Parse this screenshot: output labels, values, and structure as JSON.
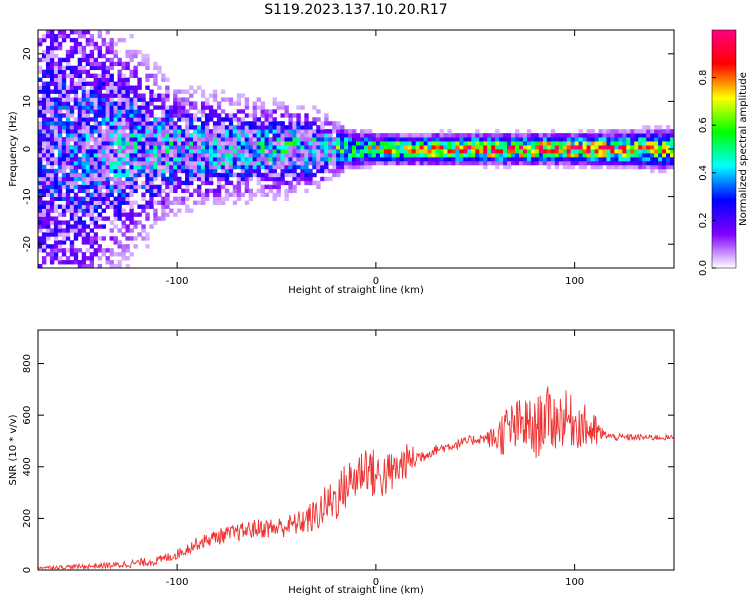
{
  "title": "S119.2023.137.10.20.R17",
  "chart_data": [
    {
      "type": "heatmap",
      "xlabel": "Height of straight line (km)",
      "ylabel": "Frequency (Hz)",
      "xlim": [
        -170,
        150
      ],
      "ylim": [
        -25,
        25
      ],
      "x_ticks": [
        -100,
        0,
        100
      ],
      "y_ticks": [
        -20,
        -10,
        0,
        10,
        20
      ],
      "x_tick_labels": [
        "-100",
        "0",
        "100"
      ],
      "y_tick_labels": [
        "-20",
        "-10",
        "0",
        "10",
        "20"
      ],
      "colorbar": {
        "label": "Normalized spectral amplitude",
        "range": [
          0,
          1
        ],
        "ticks": [
          0.0,
          0.2,
          0.4,
          0.6,
          0.8
        ],
        "tick_labels": [
          "0.0",
          "0.2",
          "0.4",
          "0.6",
          "0.8"
        ],
        "colors": [
          "#ffffff",
          "#7f00ff",
          "#0000ff",
          "#00ffff",
          "#00ff00",
          "#ffff00",
          "#ff0000",
          "#ff0080"
        ]
      },
      "profile": [
        {
          "x": -170,
          "spread": 25,
          "peak": 0.25
        },
        {
          "x": -130,
          "spread": 12,
          "peak": 0.35
        },
        {
          "x": -100,
          "spread": 6,
          "peak": 0.4
        },
        {
          "x": -60,
          "spread": 5,
          "peak": 0.4
        },
        {
          "x": -30,
          "spread": 4,
          "peak": 0.45
        },
        {
          "x": -15,
          "spread": 2,
          "peak": 0.5
        },
        {
          "x": 0,
          "spread": 1.5,
          "peak": 0.6
        },
        {
          "x": 50,
          "spread": 1.5,
          "peak": 0.75
        },
        {
          "x": 100,
          "spread": 1.5,
          "peak": 0.8
        },
        {
          "x": 150,
          "spread": 2,
          "peak": 0.6
        }
      ]
    },
    {
      "type": "line",
      "xlabel": "Height of straight line (km)",
      "ylabel": "SNR (10 * v/v)",
      "xlim": [
        -170,
        150
      ],
      "ylim": [
        0,
        930
      ],
      "x_ticks": [
        -100,
        0,
        100
      ],
      "y_ticks": [
        0,
        200,
        400,
        600,
        800
      ],
      "x_tick_labels": [
        "-100",
        "0",
        "100"
      ],
      "y_tick_labels": [
        "0",
        "200",
        "400",
        "600",
        "800"
      ],
      "color": "#ee3333",
      "series": [
        {
          "x": [
            -170,
            -150,
            -130,
            -110,
            -100,
            -90,
            -80,
            -70,
            -60,
            -50,
            -40,
            -30,
            -25,
            -20,
            -15,
            -10,
            -5,
            0,
            5,
            10,
            15,
            20,
            25,
            30,
            40,
            50,
            55,
            60,
            65,
            70,
            75,
            80,
            85,
            90,
            95,
            100,
            105,
            110,
            115,
            120,
            130,
            140,
            150
          ],
          "y": [
            8,
            10,
            15,
            30,
            55,
            95,
            120,
            135,
            150,
            150,
            165,
            190,
            230,
            250,
            300,
            330,
            380,
            330,
            340,
            360,
            400,
            420,
            440,
            460,
            480,
            500,
            505,
            490,
            510,
            520,
            530,
            500,
            560,
            540,
            560,
            540,
            530,
            510,
            520,
            510,
            510,
            510,
            510
          ]
        }
      ],
      "amplitude": [
        {
          "x": -170,
          "a": 10
        },
        {
          "x": -100,
          "a": 40
        },
        {
          "x": -80,
          "a": 60
        },
        {
          "x": -40,
          "a": 90
        },
        {
          "x": -20,
          "a": 180
        },
        {
          "x": 0,
          "a": 200
        },
        {
          "x": 15,
          "a": 140
        },
        {
          "x": 25,
          "a": 40
        },
        {
          "x": 55,
          "a": 40
        },
        {
          "x": 65,
          "a": 200
        },
        {
          "x": 85,
          "a": 250
        },
        {
          "x": 100,
          "a": 200
        },
        {
          "x": 110,
          "a": 150
        },
        {
          "x": 115,
          "a": 30
        },
        {
          "x": 150,
          "a": 20
        }
      ]
    }
  ]
}
